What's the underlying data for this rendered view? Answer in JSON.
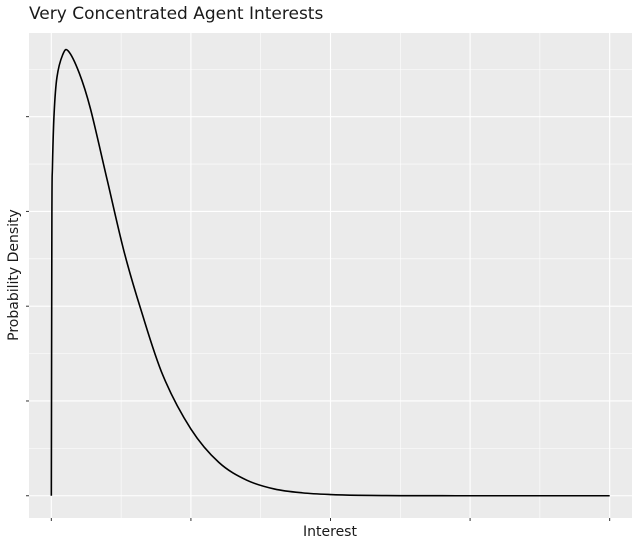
{
  "chart_data": {
    "type": "line",
    "title": "Very Concentrated Agent Interests",
    "xlabel": "Interest",
    "ylabel": "Probability Density",
    "x_tick_labels_shown": false,
    "y_tick_labels_shown": false,
    "grid": true,
    "legend": "none",
    "xlim": [
      -0.04,
      1.04
    ],
    "ylim": [
      -0.05,
      1.04
    ],
    "colors": {
      "panel_background": "#ebebeb",
      "grid_major": "#ffffff",
      "line": "#000000"
    },
    "series": [
      {
        "x": [
          0,
          0.001,
          0.002,
          0.005,
          0.01,
          0.02,
          0.03,
          0.05,
          0.07,
          0.1,
          0.13,
          0.16,
          0.2,
          0.25,
          0.3,
          0.35,
          0.4,
          0.45,
          0.5,
          0.55,
          0.6,
          0.65,
          0.7,
          0.75,
          0.8,
          0.85,
          0.9,
          0.95,
          1.0
        ],
        "y": [
          0,
          0.63,
          0.74,
          0.86,
          0.94,
          0.99,
          1.0,
          0.95,
          0.87,
          0.71,
          0.55,
          0.42,
          0.27,
          0.15,
          0.075,
          0.035,
          0.015,
          0.0065,
          0.0027,
          0.001,
          0.0004,
          0.00015,
          5e-05,
          2e-05,
          1e-05,
          0,
          0,
          0,
          0
        ]
      }
    ]
  }
}
